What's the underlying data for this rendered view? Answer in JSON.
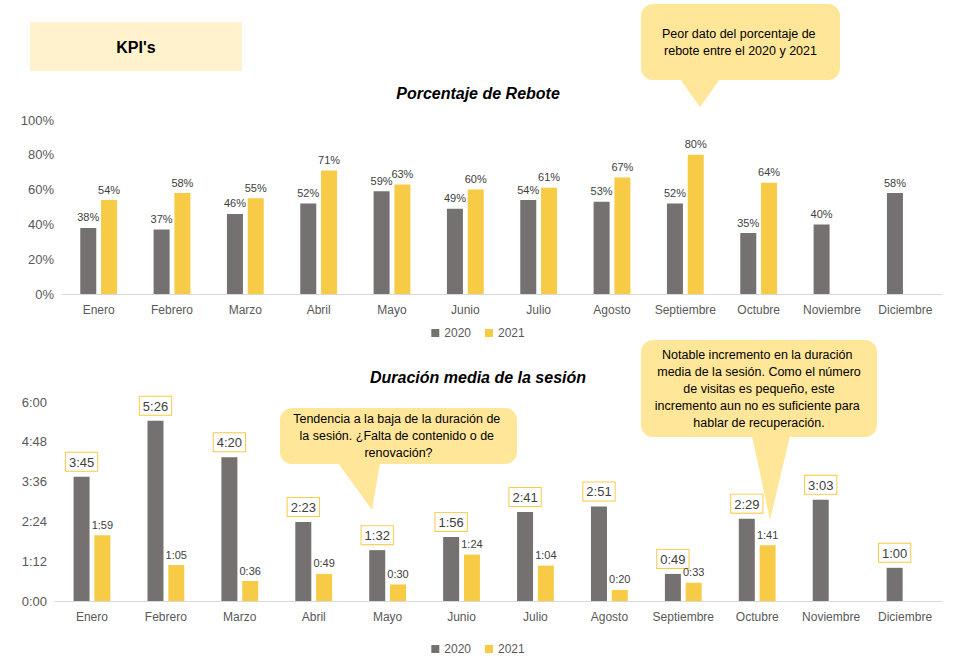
{
  "heading": "KPI's",
  "chart_data": [
    {
      "type": "bar",
      "title": "Porcentaje de Rebote",
      "categories": [
        "Enero",
        "Febrero",
        "Marzo",
        "Abril",
        "Mayo",
        "Junio",
        "Julio",
        "Agosto",
        "Septiembre",
        "Octubre",
        "Noviembre",
        "Diciembre"
      ],
      "series": [
        {
          "name": "2020",
          "color": "#767171",
          "values": [
            38,
            37,
            46,
            52,
            59,
            49,
            54,
            53,
            52,
            35,
            40,
            58
          ],
          "value_labels": [
            "38%",
            "37%",
            "46%",
            "52%",
            "59%",
            "49%",
            "54%",
            "53%",
            "52%",
            "35%",
            "40%",
            "58%"
          ]
        },
        {
          "name": "2021",
          "color": "#F7CB45",
          "values": [
            54,
            58,
            55,
            71,
            63,
            60,
            61,
            67,
            80,
            64,
            null,
            null
          ],
          "value_labels": [
            "54%",
            "58%",
            "55%",
            "71%",
            "63%",
            "60%",
            "61%",
            "67%",
            "80%",
            "64%",
            null,
            null
          ]
        }
      ],
      "ylim": [
        0,
        100
      ],
      "yticks": [
        {
          "value": 0,
          "label": "0%"
        },
        {
          "value": 20,
          "label": "20%"
        },
        {
          "value": 40,
          "label": "40%"
        },
        {
          "value": 60,
          "label": "60%"
        },
        {
          "value": 80,
          "label": "80%"
        },
        {
          "value": 100,
          "label": "100%"
        }
      ],
      "grid": false,
      "data_labels": true,
      "legend": "bottom",
      "annotations": [
        {
          "text": "Peor dato del porcentaje de rebote entre el 2020 y 2021"
        }
      ]
    },
    {
      "type": "bar",
      "title": "Duración media de la sesión",
      "categories": [
        "Enero",
        "Febrero",
        "Marzo",
        "Abril",
        "Mayo",
        "Junio",
        "Julio",
        "Agosto",
        "Septiembre",
        "Octubre",
        "Noviembre",
        "Diciembre"
      ],
      "series": [
        {
          "name": "2020",
          "color": "#767171",
          "values": [
            225,
            326,
            260,
            143,
            92,
            116,
            161,
            171,
            49,
            149,
            183,
            60
          ],
          "value_labels": [
            "3:45",
            "5:26",
            "4:20",
            "2:23",
            "1:32",
            "1:56",
            "2:41",
            "2:51",
            "0:49",
            "2:29",
            "3:03",
            "1:00"
          ]
        },
        {
          "name": "2021",
          "color": "#F7CB45",
          "values": [
            119,
            65,
            36,
            49,
            30,
            84,
            64,
            20,
            33,
            101,
            null,
            null
          ],
          "value_labels": [
            "1:59",
            "1:05",
            "0:36",
            "0:49",
            "0:30",
            "1:24",
            "1:04",
            "0:20",
            "0:33",
            "1:41",
            null,
            null
          ]
        }
      ],
      "ylim": [
        0,
        360
      ],
      "yticks": [
        {
          "value": 0,
          "label": "0:00"
        },
        {
          "value": 72,
          "label": "1:12"
        },
        {
          "value": 144,
          "label": "2:24"
        },
        {
          "value": 216,
          "label": "3:36"
        },
        {
          "value": 288,
          "label": "4:48"
        },
        {
          "value": 360,
          "label": "6:00"
        }
      ],
      "grid": false,
      "data_labels": true,
      "legend": "bottom",
      "annotations": [
        {
          "text": "Tendencia a la baja de la duración de la sesión. ¿Falta de contenido o de renovación?"
        },
        {
          "text": "Notable incremento en la duración media de la sesión. Como el número de visitas es pequeño, este incremento aun no es suficiente para hablar de recuperación."
        }
      ]
    }
  ]
}
